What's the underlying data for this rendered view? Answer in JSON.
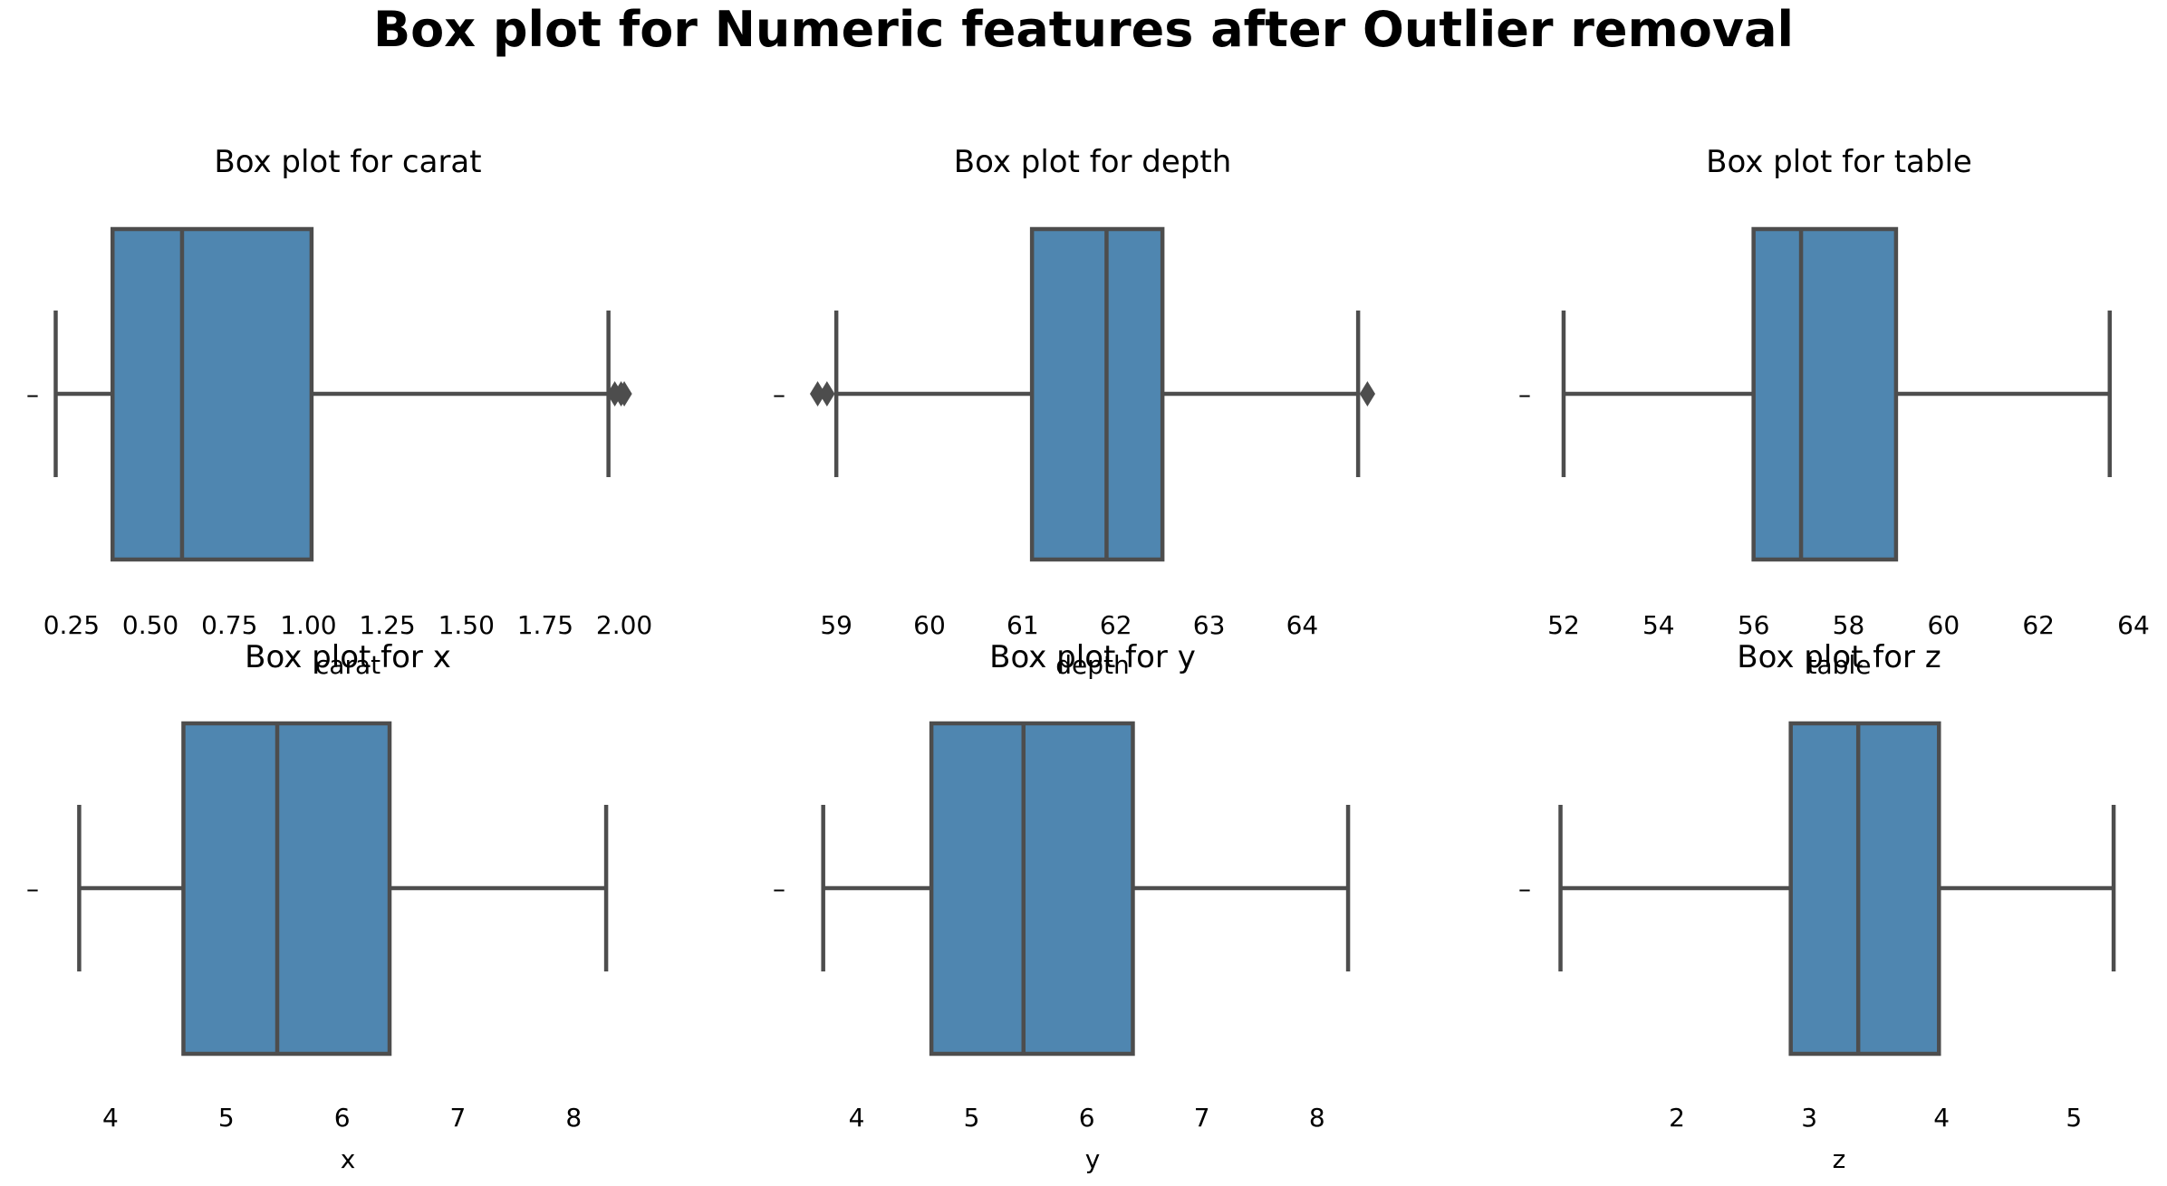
{
  "figure": {
    "title": "Box plot for Numeric features after Outlier removal",
    "box_color": "#4f86b0",
    "line_color": "#4d4d4d",
    "y_tick_label": "–"
  },
  "chart_data": [
    {
      "type": "boxplot",
      "title": "Box plot for carat",
      "xlabel": "carat",
      "xlim": [
        0.19,
        2.06
      ],
      "xticks": [
        "0.25",
        "0.50",
        "0.75",
        "1.00",
        "1.25",
        "1.50",
        "1.75",
        "2.00"
      ],
      "xtick_values": [
        0.25,
        0.5,
        0.75,
        1.0,
        1.25,
        1.5,
        1.75,
        2.0
      ],
      "whisker_low": 0.2,
      "q1": 0.38,
      "median": 0.6,
      "q3": 1.01,
      "whisker_high": 1.95,
      "outliers": [
        1.97,
        1.99,
        2.0
      ]
    },
    {
      "type": "boxplot",
      "title": "Box plot for depth",
      "xlabel": "depth",
      "xlim": [
        58.6,
        64.9
      ],
      "xticks": [
        "59",
        "60",
        "61",
        "62",
        "63",
        "64"
      ],
      "xtick_values": [
        59,
        60,
        61,
        62,
        63,
        64
      ],
      "whisker_low": 59.0,
      "q1": 61.1,
      "median": 61.9,
      "q3": 62.5,
      "whisker_high": 64.6,
      "outliers": [
        58.8,
        58.9,
        64.7
      ]
    },
    {
      "type": "boxplot",
      "title": "Box plot for table",
      "xlabel": "table",
      "xlim": [
        51.6,
        64.0
      ],
      "xticks": [
        "52",
        "54",
        "56",
        "58",
        "60",
        "62",
        "64"
      ],
      "xtick_values": [
        52,
        54,
        56,
        58,
        60,
        62,
        64
      ],
      "whisker_low": 52.0,
      "q1": 56.0,
      "median": 57.0,
      "q3": 59.0,
      "whisker_high": 63.5,
      "outliers": []
    },
    {
      "type": "boxplot",
      "title": "Box plot for x",
      "xlabel": "x",
      "xlim": [
        3.5,
        8.6
      ],
      "xticks": [
        "4",
        "5",
        "6",
        "7",
        "8"
      ],
      "xtick_values": [
        4,
        5,
        6,
        7,
        8
      ],
      "whisker_low": 3.73,
      "q1": 4.63,
      "median": 5.44,
      "q3": 6.41,
      "whisker_high": 8.28,
      "outliers": []
    },
    {
      "type": "boxplot",
      "title": "Box plot for y",
      "xlabel": "y",
      "xlim": [
        3.5,
        8.6
      ],
      "xticks": [
        "4",
        "5",
        "6",
        "7",
        "8"
      ],
      "xtick_values": [
        4,
        5,
        6,
        7,
        8
      ],
      "whisker_low": 3.71,
      "q1": 4.65,
      "median": 5.45,
      "q3": 6.4,
      "whisker_high": 8.27,
      "outliers": []
    },
    {
      "type": "boxplot",
      "title": "Box plot for z",
      "xlabel": "z",
      "xlim": [
        1.0,
        5.45
      ],
      "xticks": [
        "2",
        "3",
        "4",
        "5"
      ],
      "xtick_values": [
        2,
        3,
        4,
        5
      ],
      "whisker_low": 1.12,
      "q1": 2.86,
      "median": 3.37,
      "q3": 3.98,
      "whisker_high": 5.3,
      "outliers": []
    }
  ]
}
